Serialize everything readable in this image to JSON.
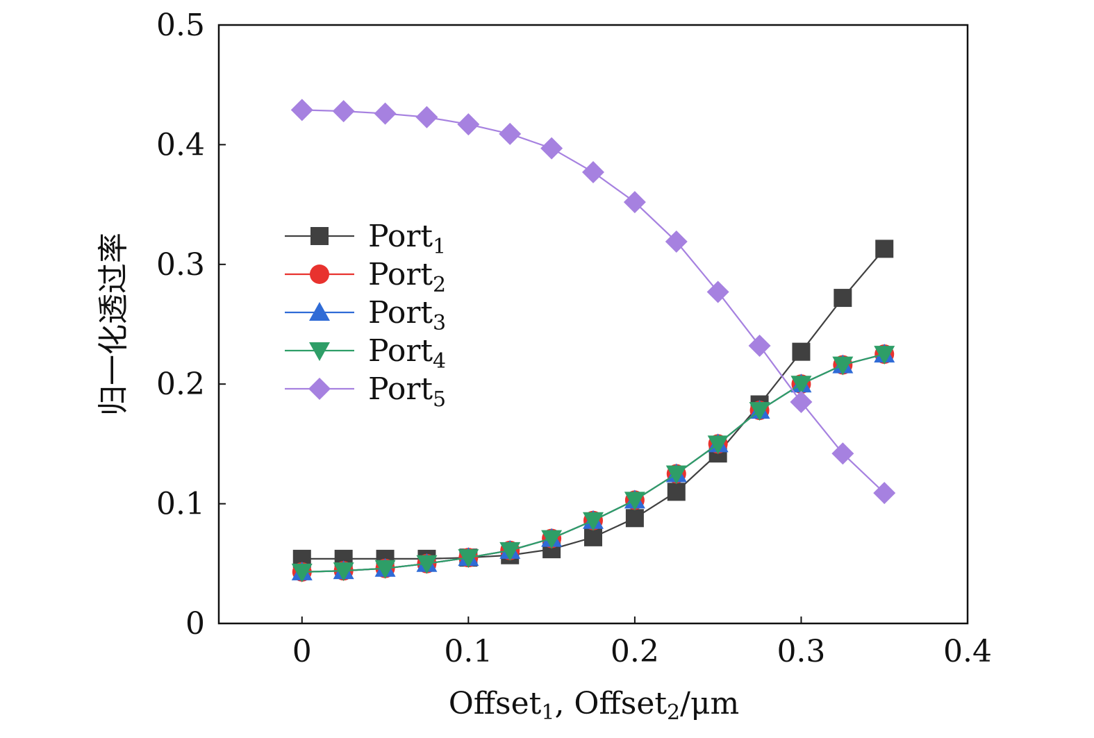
{
  "chart_data": {
    "type": "line",
    "xlabel": {
      "parts": [
        {
          "text": "Offset",
          "sub": false
        },
        {
          "text": "1",
          "sub": true
        },
        {
          "text": ", Offset",
          "sub": false
        },
        {
          "text": "2",
          "sub": true
        },
        {
          "text": "/μm",
          "sub": false
        }
      ]
    },
    "ylabel": "归一化透过率",
    "xlim": [
      -0.05,
      0.4
    ],
    "ylim": [
      0,
      0.5
    ],
    "xticks": [
      0,
      0.1,
      0.2,
      0.3,
      0.4
    ],
    "xtick_labels": [
      "0",
      "0.1",
      "0.2",
      "0.3",
      "0.4"
    ],
    "yticks": [
      0,
      0.1,
      0.2,
      0.3,
      0.4,
      0.5
    ],
    "ytick_labels": [
      "0",
      "0.1",
      "0.2",
      "0.3",
      "0.4",
      "0.5"
    ],
    "grid": false,
    "legend_position": "left-center",
    "x": [
      0,
      0.025,
      0.05,
      0.075,
      0.1,
      0.125,
      0.15,
      0.175,
      0.2,
      0.225,
      0.25,
      0.275,
      0.3,
      0.325,
      0.35
    ],
    "series": [
      {
        "name": "Port",
        "sub": "1",
        "marker": "square",
        "color": "#404040",
        "values": [
          0.054,
          0.054,
          0.054,
          0.054,
          0.055,
          0.057,
          0.062,
          0.072,
          0.088,
          0.11,
          0.142,
          0.183,
          0.227,
          0.272,
          0.313
        ]
      },
      {
        "name": "Port",
        "sub": "2",
        "marker": "circle",
        "color": "#e8322e",
        "values": [
          0.043,
          0.044,
          0.046,
          0.05,
          0.055,
          0.061,
          0.071,
          0.086,
          0.103,
          0.125,
          0.15,
          0.178,
          0.2,
          0.216,
          0.225
        ]
      },
      {
        "name": "Port",
        "sub": "3",
        "marker": "triangle-up",
        "color": "#2f6bd6",
        "values": [
          0.043,
          0.044,
          0.046,
          0.05,
          0.055,
          0.061,
          0.071,
          0.086,
          0.103,
          0.125,
          0.15,
          0.178,
          0.2,
          0.216,
          0.225
        ]
      },
      {
        "name": "Port",
        "sub": "4",
        "marker": "triangle-down",
        "color": "#2e9e67",
        "values": [
          0.043,
          0.044,
          0.046,
          0.05,
          0.055,
          0.061,
          0.071,
          0.086,
          0.103,
          0.125,
          0.15,
          0.178,
          0.2,
          0.216,
          0.225
        ]
      },
      {
        "name": "Port",
        "sub": "5",
        "marker": "diamond",
        "color": "#a681e0",
        "values": [
          0.429,
          0.428,
          0.426,
          0.423,
          0.417,
          0.409,
          0.397,
          0.377,
          0.352,
          0.319,
          0.277,
          0.232,
          0.185,
          0.142,
          0.109
        ]
      }
    ]
  }
}
